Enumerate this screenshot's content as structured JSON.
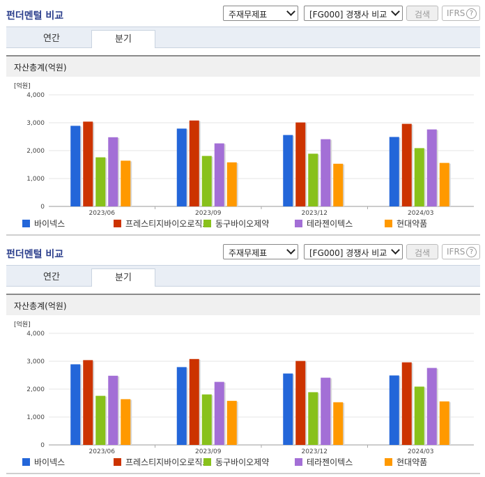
{
  "panels": [
    {
      "title": "펀더멘털 비교",
      "select_statement": "주재무제표",
      "select_compare": "[FG000] 경쟁사 비교",
      "search_label": "검색",
      "ifrs_label": "IFRS",
      "help_glyph": "?",
      "tabs": [
        "연간",
        "분기"
      ],
      "active_tab": "분기",
      "section_title": "자산총계(억원)"
    },
    {
      "title": "펀더멘털 비교",
      "select_statement": "주재무제표",
      "select_compare": "[FG000] 경쟁사 비교",
      "search_label": "검색",
      "ifrs_label": "IFRS",
      "help_glyph": "?",
      "tabs": [
        "연간",
        "분기"
      ],
      "active_tab": "분기",
      "section_title": "자산총계(억원)"
    }
  ],
  "chart_data": [
    {
      "type": "bar",
      "title": "자산총계(억원)",
      "unit_label": "[억원]",
      "categories": [
        "2023/06",
        "2023/09",
        "2023/12",
        "2024/03"
      ],
      "ylim": [
        0,
        4000
      ],
      "yticks": [
        0,
        1000,
        2000,
        3000,
        4000
      ],
      "ytick_labels": [
        "0",
        "1,000",
        "2,000",
        "3,000",
        "4,000"
      ],
      "grid": true,
      "legend": "bottom",
      "series": [
        {
          "name": "바이넥스",
          "color": "#2366d9",
          "values": [
            2890,
            2790,
            2560,
            2490
          ]
        },
        {
          "name": "프레스티지바이오로직스",
          "color": "#cc3300",
          "values": [
            3040,
            3080,
            3010,
            2960
          ]
        },
        {
          "name": "동구바이오제약",
          "color": "#88c11b",
          "values": [
            1760,
            1810,
            1890,
            2090
          ]
        },
        {
          "name": "테라젠이텍스",
          "color": "#a36fd6",
          "values": [
            2480,
            2260,
            2410,
            2760
          ]
        },
        {
          "name": "현대약품",
          "color": "#ff9900",
          "values": [
            1640,
            1580,
            1530,
            1560
          ]
        }
      ]
    },
    {
      "type": "bar",
      "title": "자산총계(억원)",
      "unit_label": "[억원]",
      "categories": [
        "2023/06",
        "2023/09",
        "2023/12",
        "2024/03"
      ],
      "ylim": [
        0,
        4000
      ],
      "yticks": [
        0,
        1000,
        2000,
        3000,
        4000
      ],
      "ytick_labels": [
        "0",
        "1,000",
        "2,000",
        "3,000",
        "4,000"
      ],
      "grid": true,
      "legend": "bottom",
      "series": [
        {
          "name": "바이넥스",
          "color": "#2366d9",
          "values": [
            2890,
            2790,
            2560,
            2490
          ]
        },
        {
          "name": "프레스티지바이오로직스",
          "color": "#cc3300",
          "values": [
            3040,
            3080,
            3010,
            2960
          ]
        },
        {
          "name": "동구바이오제약",
          "color": "#88c11b",
          "values": [
            1760,
            1810,
            1890,
            2090
          ]
        },
        {
          "name": "테라젠이텍스",
          "color": "#a36fd6",
          "values": [
            2480,
            2260,
            2410,
            2760
          ]
        },
        {
          "name": "현대약품",
          "color": "#ff9900",
          "values": [
            1640,
            1580,
            1530,
            1560
          ]
        }
      ]
    }
  ]
}
